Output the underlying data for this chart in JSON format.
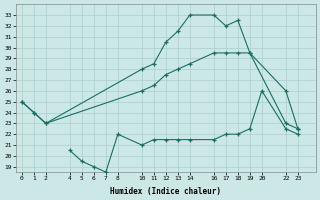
{
  "xlabel": "Humidex (Indice chaleur)",
  "background_color": "#cce8e6",
  "grid_color": "#aacece",
  "line_color": "#1a6e62",
  "line_upper": {
    "x": [
      0,
      1,
      2,
      10,
      11,
      12,
      13,
      14,
      16,
      17,
      18,
      19,
      22,
      23
    ],
    "y": [
      25.0,
      24.0,
      23.0,
      28.0,
      28.5,
      30.5,
      31.5,
      33.0,
      33.0,
      32.0,
      32.5,
      29.5,
      23.0,
      22.5
    ]
  },
  "line_mid": {
    "x": [
      0,
      1,
      2,
      10,
      11,
      12,
      13,
      14,
      16,
      17,
      18,
      19,
      22,
      23
    ],
    "y": [
      25.0,
      24.0,
      23.0,
      26.0,
      26.5,
      27.5,
      28.0,
      28.5,
      29.5,
      29.5,
      29.5,
      29.5,
      26.0,
      22.5
    ]
  },
  "line_lower": {
    "x": [
      4,
      5,
      6,
      7,
      8,
      10,
      11,
      12,
      13,
      14,
      16,
      17,
      18,
      19,
      20,
      22,
      23
    ],
    "y": [
      20.5,
      19.5,
      19.0,
      18.5,
      22.0,
      21.0,
      21.5,
      21.5,
      21.5,
      21.5,
      21.5,
      22.0,
      22.0,
      22.5,
      26.0,
      22.5,
      22.0
    ]
  },
  "xlim": [
    -0.5,
    24.5
  ],
  "ylim": [
    18.5,
    34.0
  ],
  "yticks": [
    19,
    20,
    21,
    22,
    23,
    24,
    25,
    26,
    27,
    28,
    29,
    30,
    31,
    32,
    33
  ],
  "xticks": [
    0,
    1,
    2,
    4,
    5,
    6,
    7,
    8,
    10,
    11,
    12,
    13,
    14,
    16,
    17,
    18,
    19,
    20,
    22,
    23
  ]
}
